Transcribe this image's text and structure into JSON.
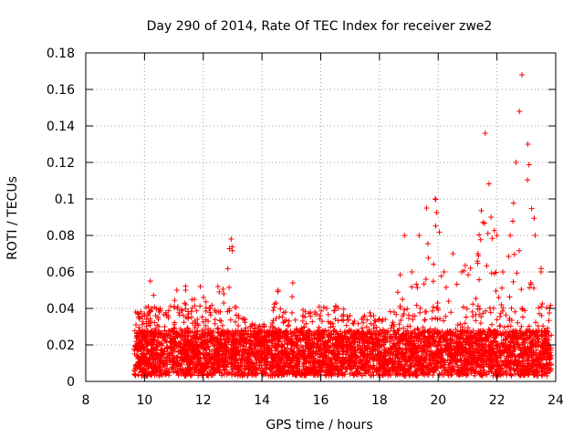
{
  "chart_data": {
    "type": "scatter",
    "title": "Day 290 of 2014, Rate Of TEC Index for receiver zwe2",
    "xlabel": "GPS time / hours",
    "ylabel": "ROTI / TECUs",
    "xlim": [
      8,
      24
    ],
    "ylim": [
      0,
      0.18
    ],
    "xticks": [
      8,
      10,
      12,
      14,
      16,
      18,
      20,
      22,
      24
    ],
    "xtick_labels": [
      "8",
      "10",
      "12",
      "14",
      "16",
      "18",
      "20",
      "22",
      "24"
    ],
    "yticks": [
      0,
      0.02,
      0.04,
      0.06,
      0.08,
      0.1,
      0.12,
      0.14,
      0.16,
      0.18
    ],
    "ytick_labels": [
      "0",
      "0.02",
      "0.04",
      "0.06",
      "0.08",
      "0.1",
      "0.12",
      "0.14",
      "0.16",
      "0.18"
    ],
    "grid": true,
    "marker": "+",
    "color": "#ff0000",
    "x_start": 9.65,
    "x_end": 23.85,
    "series": [
      {
        "name": "ROTI",
        "envelope_note": "approximate upper envelope of dense data cloud (hour, ROTI)",
        "envelope": [
          [
            9.7,
            0.038
          ],
          [
            10.0,
            0.036
          ],
          [
            10.2,
            0.055
          ],
          [
            10.5,
            0.038
          ],
          [
            10.8,
            0.036
          ],
          [
            11.1,
            0.05
          ],
          [
            11.4,
            0.05
          ],
          [
            11.7,
            0.045
          ],
          [
            11.9,
            0.052
          ],
          [
            12.2,
            0.04
          ],
          [
            12.5,
            0.052
          ],
          [
            12.7,
            0.048
          ],
          [
            12.95,
            0.078
          ],
          [
            13.2,
            0.036
          ],
          [
            13.6,
            0.03
          ],
          [
            14.0,
            0.028
          ],
          [
            14.3,
            0.03
          ],
          [
            14.55,
            0.05
          ],
          [
            14.8,
            0.038
          ],
          [
            15.05,
            0.054
          ],
          [
            15.4,
            0.036
          ],
          [
            15.8,
            0.038
          ],
          [
            16.2,
            0.04
          ],
          [
            16.6,
            0.04
          ],
          [
            17.0,
            0.036
          ],
          [
            17.4,
            0.034
          ],
          [
            17.8,
            0.036
          ],
          [
            18.2,
            0.034
          ],
          [
            18.5,
            0.038
          ],
          [
            18.85,
            0.08
          ],
          [
            19.1,
            0.06
          ],
          [
            19.35,
            0.08
          ],
          [
            19.6,
            0.095
          ],
          [
            19.9,
            0.1
          ],
          [
            20.2,
            0.06
          ],
          [
            20.5,
            0.07
          ],
          [
            20.8,
            0.06
          ],
          [
            21.1,
            0.062
          ],
          [
            21.35,
            0.07
          ],
          [
            21.6,
            0.136
          ],
          [
            21.8,
            0.09
          ],
          [
            22.0,
            0.08
          ],
          [
            22.2,
            0.06
          ],
          [
            22.45,
            0.08
          ],
          [
            22.65,
            0.12
          ],
          [
            22.85,
            0.168
          ],
          [
            23.05,
            0.13
          ],
          [
            23.3,
            0.08
          ],
          [
            23.5,
            0.06
          ],
          [
            23.8,
            0.04
          ]
        ]
      }
    ]
  }
}
